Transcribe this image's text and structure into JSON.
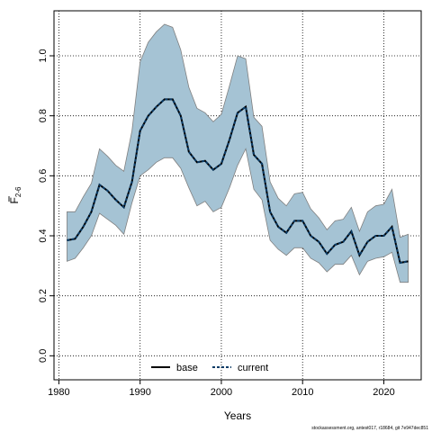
{
  "chart_data": {
    "type": "area",
    "ylabel_main": "F",
    "ylabel_sub": "2-6",
    "xlabel": "Years",
    "xlim": [
      1979.4,
      2024.6
    ],
    "ylim": [
      -0.08,
      1.15
    ],
    "xticks": [
      1980,
      1990,
      2000,
      2010,
      2020
    ],
    "yticks": [
      0.0,
      0.2,
      0.4,
      0.6,
      0.8,
      1.0
    ],
    "ytick_labels": [
      "0.0",
      "0.2",
      "0.4",
      "0.6",
      "0.8",
      "1.0"
    ],
    "grid": true,
    "legend_position": "bottom-center",
    "colors": {
      "band": "#a5c3d4",
      "band_edge": "#808080",
      "current": "#0a3b66",
      "base": "#000000"
    },
    "x": [
      1981,
      1982,
      1983,
      1984,
      1985,
      1986,
      1987,
      1988,
      1989,
      1990,
      1991,
      1992,
      1993,
      1994,
      1995,
      1996,
      1997,
      1998,
      1999,
      2000,
      2001,
      2002,
      2003,
      2004,
      2005,
      2006,
      2007,
      2008,
      2009,
      2010,
      2011,
      2012,
      2013,
      2014,
      2015,
      2016,
      2017,
      2018,
      2019,
      2020,
      2021,
      2022,
      2023
    ],
    "series": [
      {
        "name": "base",
        "values": [
          0.385,
          0.39,
          0.43,
          0.48,
          0.57,
          0.55,
          0.52,
          0.495,
          0.58,
          0.75,
          0.8,
          0.83,
          0.855,
          0.855,
          0.8,
          0.68,
          0.645,
          0.65,
          0.62,
          0.64,
          0.72,
          0.81,
          0.83,
          0.67,
          0.64,
          0.48,
          0.43,
          0.41,
          0.45,
          0.45,
          0.4,
          0.38,
          0.34,
          0.37,
          0.38,
          0.415,
          0.335,
          0.38,
          0.4,
          0.4,
          0.43,
          0.31,
          0.315
        ]
      },
      {
        "name": "current",
        "values": [
          0.385,
          0.39,
          0.43,
          0.48,
          0.57,
          0.55,
          0.52,
          0.495,
          0.58,
          0.75,
          0.8,
          0.83,
          0.855,
          0.855,
          0.8,
          0.68,
          0.645,
          0.65,
          0.62,
          0.64,
          0.72,
          0.81,
          0.83,
          0.67,
          0.64,
          0.48,
          0.43,
          0.41,
          0.45,
          0.45,
          0.4,
          0.38,
          0.34,
          0.37,
          0.38,
          0.415,
          0.335,
          0.38,
          0.4,
          0.4,
          0.43,
          0.31,
          0.315
        ]
      }
    ],
    "band_lower": [
      0.315,
      0.325,
      0.36,
      0.4,
      0.475,
      0.455,
      0.435,
      0.405,
      0.51,
      0.6,
      0.62,
      0.645,
      0.66,
      0.66,
      0.625,
      0.56,
      0.5,
      0.515,
      0.48,
      0.495,
      0.56,
      0.635,
      0.69,
      0.555,
      0.52,
      0.385,
      0.355,
      0.335,
      0.36,
      0.36,
      0.325,
      0.31,
      0.28,
      0.305,
      0.305,
      0.335,
      0.27,
      0.315,
      0.325,
      0.33,
      0.345,
      0.245,
      0.245
    ],
    "band_upper": [
      0.48,
      0.48,
      0.53,
      0.575,
      0.69,
      0.665,
      0.635,
      0.615,
      0.75,
      0.98,
      1.045,
      1.08,
      1.105,
      1.095,
      1.02,
      0.895,
      0.825,
      0.81,
      0.78,
      0.805,
      0.9,
      1.0,
      0.99,
      0.795,
      0.765,
      0.58,
      0.525,
      0.5,
      0.54,
      0.545,
      0.49,
      0.46,
      0.42,
      0.45,
      0.455,
      0.495,
      0.415,
      0.48,
      0.5,
      0.505,
      0.555,
      0.395,
      0.405
    ]
  },
  "legend": {
    "base": "base",
    "current": "current"
  },
  "footnote": "stockassessment.org, antest017, r18684, git 7e947dec851"
}
